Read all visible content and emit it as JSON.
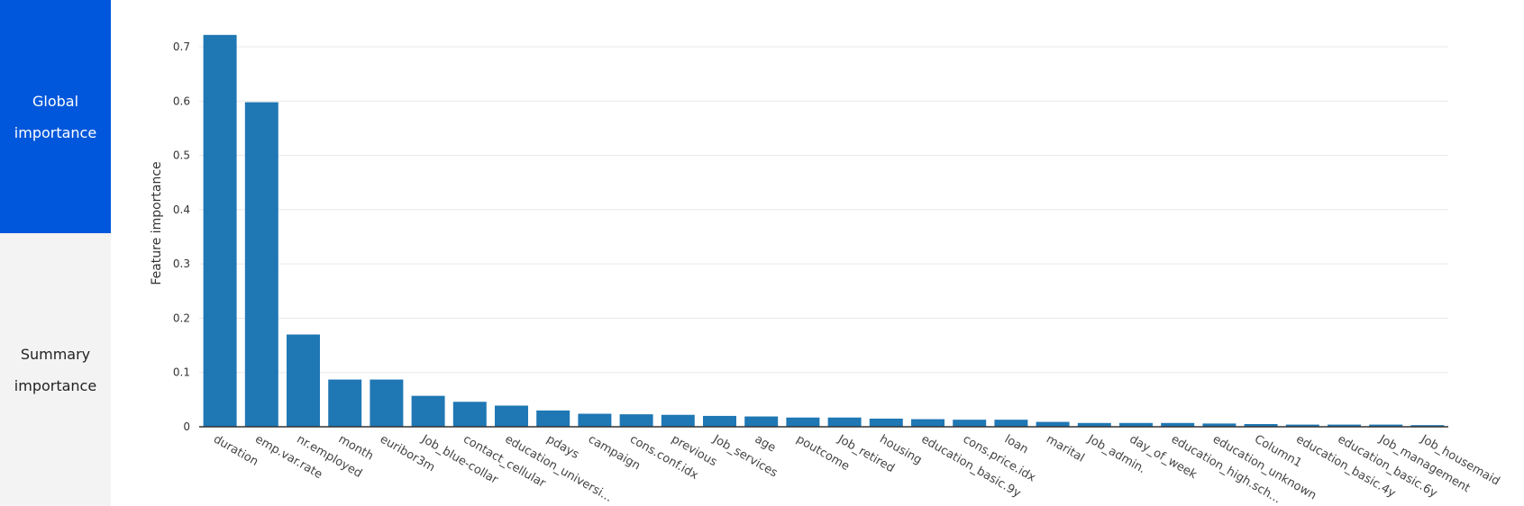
{
  "sidebar": {
    "tabs": [
      {
        "label": "Global importance",
        "active": true
      },
      {
        "label": "Summary importance",
        "active": false
      }
    ]
  },
  "colors": {
    "bar": "#1f77b4",
    "active_tab": "#0057db",
    "inactive_tab": "#f3f3f3",
    "grid": "#e8e8e8",
    "axis": "#333333"
  },
  "chart_data": {
    "type": "bar",
    "title": "",
    "xlabel": "",
    "ylabel": "Feature importance",
    "ylim": [
      0,
      0.72
    ],
    "yticks": [
      0,
      0.1,
      0.2,
      0.3,
      0.4,
      0.5,
      0.6,
      0.7
    ],
    "ytick_labels": [
      "0",
      "0.1",
      "0.2",
      "0.3",
      "0.4",
      "0.5",
      "0.6",
      "0.7"
    ],
    "grid": true,
    "categories": [
      "duration",
      "emp.var.rate",
      "nr.employed",
      "month",
      "euribor3m",
      "Job_blue-collar",
      "contact_cellular",
      "education_universi...",
      "pdays",
      "campaign",
      "cons.conf.idx",
      "previous",
      "Job_services",
      "age",
      "poutcome",
      "Job_retired",
      "housing",
      "education_basic.9y",
      "cons.price.idx",
      "loan",
      "marital",
      "Job_admin.",
      "day_of_week",
      "education_high.sch...",
      "education_unknown",
      "Column1",
      "education_basic.4y",
      "education_basic.6y",
      "Job_management",
      "Job_housemaid"
    ],
    "values": [
      0.722,
      0.598,
      0.17,
      0.087,
      0.087,
      0.057,
      0.046,
      0.039,
      0.03,
      0.024,
      0.023,
      0.022,
      0.02,
      0.019,
      0.017,
      0.017,
      0.015,
      0.014,
      0.013,
      0.013,
      0.009,
      0.007,
      0.007,
      0.007,
      0.006,
      0.005,
      0.004,
      0.004,
      0.004,
      0.003
    ]
  }
}
